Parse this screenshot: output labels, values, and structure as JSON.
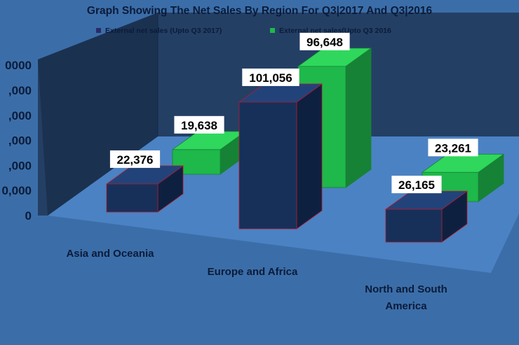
{
  "chart_data": {
    "type": "bar",
    "title": "Graph Showing The Net Sales By Region For Q3|2017 And Q3|2016",
    "categories": [
      "Asia and Oceania",
      "Europe and Africa",
      "North and South America"
    ],
    "category_lines": [
      [
        "Asia and Oceania"
      ],
      [
        "Europe and Africa"
      ],
      [
        "North and South",
        "America"
      ]
    ],
    "series": [
      {
        "name": "External net sales (Upto Q3 2017)",
        "values": [
          22376,
          101056,
          26165
        ],
        "labels": [
          "22,376",
          "101,056",
          "26,165"
        ]
      },
      {
        "name": "External net sales(Upto Q3 2016",
        "values": [
          19638,
          96648,
          23261
        ],
        "labels": [
          "19,638",
          "96,648",
          "23,261"
        ]
      }
    ],
    "y_ticks": [
      "0",
      "0,000",
      ",000",
      ",000",
      ",000",
      ",000",
      "0000"
    ],
    "ylim": [
      0,
      120000
    ],
    "legend_position": "top",
    "style_3d": true,
    "grid": false,
    "colors": {
      "background": "#3b6ea8",
      "floor": "#4b82c3",
      "back_wall": "#243f64",
      "side_wall": "#1b3150",
      "series_2017_front": "#17305a",
      "series_2017_top": "#22437a",
      "series_2017_side": "#0e2040",
      "series_2017_edge": "#b01c2e",
      "series_2016_front": "#1fb84a",
      "series_2016_top": "#2fd75c",
      "series_2016_side": "#168236",
      "label_box": "#ffffff"
    }
  }
}
